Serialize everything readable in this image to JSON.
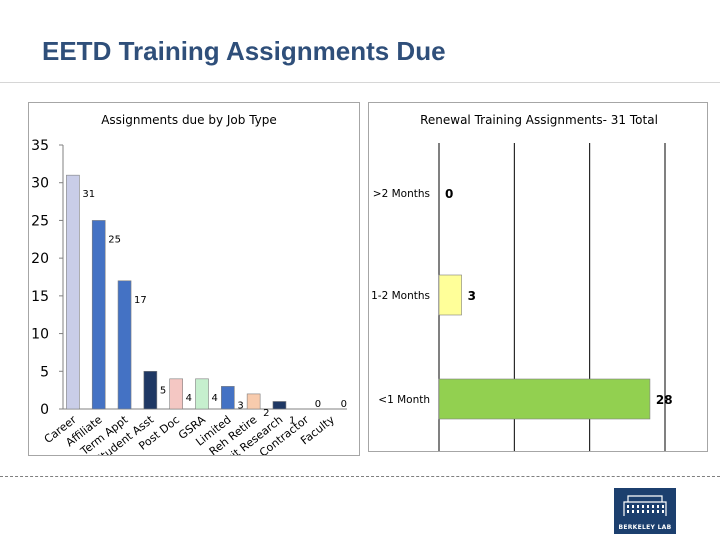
{
  "slide": {
    "title": "EETD Training Assignments Due",
    "logo_text": "BERKELEY LAB"
  },
  "chart_data": [
    {
      "type": "bar",
      "title": "Assignments due by Job Type",
      "categories": [
        "Career",
        "Affiliate",
        "Term Appt",
        "Student Asst",
        "Post Doc",
        "GSRA",
        "Limited",
        "Reh Retire",
        "Visit Research",
        "Contractor",
        "Faculty"
      ],
      "values": [
        31,
        25,
        17,
        5,
        4,
        4,
        3,
        2,
        1,
        0,
        0
      ],
      "colors": [
        "#c9cde8",
        "#4472c4",
        "#4472c4",
        "#1f3864",
        "#f4c7c3",
        "#c6efce",
        "#4472c4",
        "#f8cbad",
        "#1f3864",
        "#4472c4",
        "#4472c4"
      ],
      "ylim": [
        0,
        35
      ],
      "yticks": [
        0,
        5,
        10,
        15,
        20,
        25,
        30,
        35
      ],
      "grid": false,
      "legend": "none"
    },
    {
      "type": "bar",
      "orientation": "horizontal",
      "title": "Renewal Training Assignments- 31 Total",
      "categories": [
        ">2 Months",
        "1-2 Months",
        "<1 Month"
      ],
      "values": [
        0,
        3,
        28
      ],
      "colors": [
        "#ffff99",
        "#ffff99",
        "#92d050"
      ],
      "xlim": [
        0,
        30
      ],
      "xticks": [
        0,
        10,
        20,
        30
      ],
      "grid": true,
      "legend": "none"
    }
  ]
}
